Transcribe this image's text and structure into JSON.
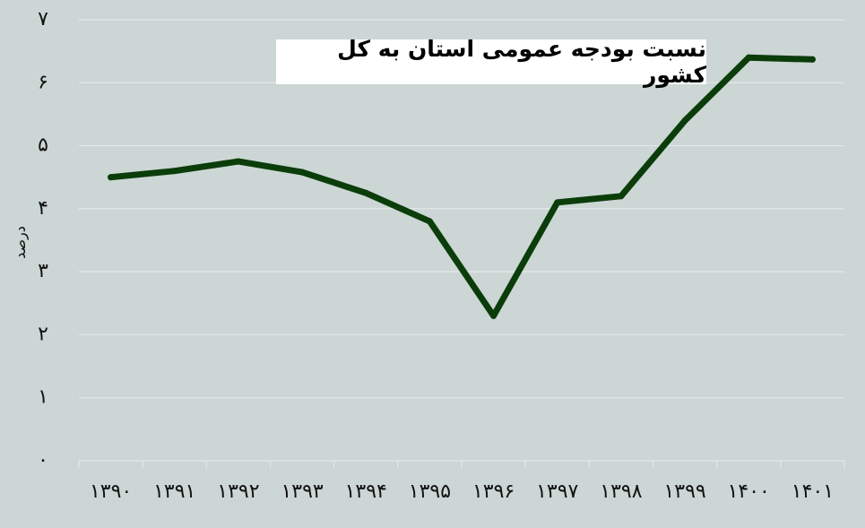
{
  "chart_data": {
    "type": "line",
    "title": "نسبت بودجه عمومی استان به کل کشور",
    "xlabel": "",
    "ylabel": "درصد",
    "categories": [
      "۱۳۹۰",
      "۱۳۹۱",
      "۱۳۹۲",
      "۱۳۹۳",
      "۱۳۹۴",
      "۱۳۹۵",
      "۱۳۹۶",
      "۱۳۹۷",
      "۱۳۹۸",
      "۱۳۹۹",
      "۱۴۰۰",
      "۱۴۰۱"
    ],
    "y_ticks": [
      "۰",
      "۱",
      "۲",
      "۳",
      "۴",
      "۵",
      "۶",
      "۷"
    ],
    "values": [
      4.5,
      4.6,
      4.75,
      4.58,
      4.25,
      3.8,
      2.3,
      4.1,
      4.2,
      5.4,
      6.4,
      6.37
    ],
    "ylim": [
      0,
      7
    ],
    "grid": true,
    "line_color": "#0b3d0b",
    "background": "#ccd6d4",
    "gridline_color": "#e3e9e8"
  }
}
